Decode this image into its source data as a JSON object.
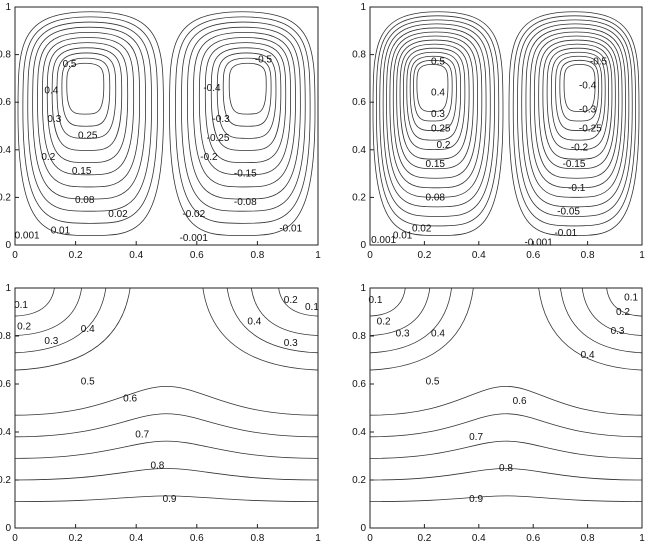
{
  "chart_data": [
    {
      "type": "contour",
      "panel": "top-left",
      "xlim": [
        0,
        1
      ],
      "ylim": [
        0,
        1
      ],
      "xticks": [
        "0",
        "0.2",
        "0.4",
        "0.6",
        "0.8",
        "1"
      ],
      "yticks": [
        "0",
        "0.2",
        "0.4",
        "0.6",
        "0.8",
        "1"
      ],
      "levels": [
        "0.001",
        "0.01",
        "0.02",
        "0.08",
        "0.15",
        "0.2",
        "0.25",
        "0.3",
        "0.4",
        "0.5"
      ],
      "labels": [
        {
          "text": "0.5",
          "x": 0.18,
          "y": 0.76
        },
        {
          "text": "0.4",
          "x": 0.12,
          "y": 0.65
        },
        {
          "text": "0.3",
          "x": 0.13,
          "y": 0.53
        },
        {
          "text": "0.25",
          "x": 0.24,
          "y": 0.46
        },
        {
          "text": "0.2",
          "x": 0.11,
          "y": 0.37
        },
        {
          "text": "0.15",
          "x": 0.22,
          "y": 0.31
        },
        {
          "text": "0.08",
          "x": 0.23,
          "y": 0.19
        },
        {
          "text": "0.02",
          "x": 0.34,
          "y": 0.13
        },
        {
          "text": "0.01",
          "x": 0.15,
          "y": 0.06
        },
        {
          "text": "0.001",
          "x": 0.04,
          "y": 0.04
        },
        {
          "text": "-0.5",
          "x": 0.82,
          "y": 0.78
        },
        {
          "text": "-0.4",
          "x": 0.65,
          "y": 0.66
        },
        {
          "text": "-0.3",
          "x": 0.68,
          "y": 0.53
        },
        {
          "text": "-0.25",
          "x": 0.67,
          "y": 0.45
        },
        {
          "text": "-0.2",
          "x": 0.64,
          "y": 0.37
        },
        {
          "text": "-0.15",
          "x": 0.76,
          "y": 0.3
        },
        {
          "text": "-0.08",
          "x": 0.76,
          "y": 0.18
        },
        {
          "text": "-0.02",
          "x": 0.59,
          "y": 0.13
        },
        {
          "text": "-0.01",
          "x": 0.91,
          "y": 0.07
        },
        {
          "text": "-0.001",
          "x": 0.59,
          "y": 0.03
        }
      ]
    },
    {
      "type": "contour",
      "panel": "top-right",
      "xlim": [
        0,
        1
      ],
      "ylim": [
        0,
        1
      ],
      "xticks": [
        "0",
        "0.2",
        "0.4",
        "0.6",
        "0.8",
        "1"
      ],
      "yticks": [
        "0",
        "0.2",
        "0.4",
        "0.6",
        "0.8",
        "1"
      ],
      "levels": [
        "0.001",
        "0.01",
        "0.02",
        "0.05",
        "0.08",
        "0.1",
        "0.15",
        "0.2",
        "0.25",
        "0.3",
        "0.4",
        "0.5"
      ],
      "labels": [
        {
          "text": "0.5",
          "x": 0.25,
          "y": 0.77
        },
        {
          "text": "0.4",
          "x": 0.25,
          "y": 0.64
        },
        {
          "text": "0.3",
          "x": 0.25,
          "y": 0.55
        },
        {
          "text": "0.25",
          "x": 0.26,
          "y": 0.49
        },
        {
          "text": "0.2",
          "x": 0.27,
          "y": 0.42
        },
        {
          "text": "0.15",
          "x": 0.24,
          "y": 0.34
        },
        {
          "text": "0.08",
          "x": 0.24,
          "y": 0.2
        },
        {
          "text": "0.02",
          "x": 0.19,
          "y": 0.07
        },
        {
          "text": "0.01",
          "x": 0.12,
          "y": 0.04
        },
        {
          "text": "0.001",
          "x": 0.05,
          "y": 0.02
        },
        {
          "text": "-0.5",
          "x": 0.84,
          "y": 0.77
        },
        {
          "text": "-0.4",
          "x": 0.8,
          "y": 0.67
        },
        {
          "text": "-0.3",
          "x": 0.8,
          "y": 0.57
        },
        {
          "text": "-0.25",
          "x": 0.81,
          "y": 0.49
        },
        {
          "text": "-0.2",
          "x": 0.77,
          "y": 0.41
        },
        {
          "text": "-0.15",
          "x": 0.75,
          "y": 0.34
        },
        {
          "text": "-0.1",
          "x": 0.76,
          "y": 0.24
        },
        {
          "text": "-0.05",
          "x": 0.73,
          "y": 0.14
        },
        {
          "text": "-0.01",
          "x": 0.72,
          "y": 0.05
        },
        {
          "text": "-0.001",
          "x": 0.62,
          "y": 0.01
        }
      ]
    },
    {
      "type": "contour",
      "panel": "bottom-left",
      "xlim": [
        0,
        1
      ],
      "ylim": [
        0,
        1
      ],
      "xticks": [
        "0",
        "0.2",
        "0.4",
        "0.6",
        "0.8",
        "1"
      ],
      "yticks": [
        "0",
        "0.2",
        "0.4",
        "0.6",
        "0.8",
        "1"
      ],
      "levels": [
        "0.1",
        "0.2",
        "0.3",
        "0.4",
        "0.5",
        "0.6",
        "0.7",
        "0.8",
        "0.9"
      ],
      "labels": [
        {
          "text": "0.1",
          "x": 0.02,
          "y": 0.93
        },
        {
          "text": "0.2",
          "x": 0.03,
          "y": 0.84
        },
        {
          "text": "0.3",
          "x": 0.12,
          "y": 0.78
        },
        {
          "text": "0.4",
          "x": 0.24,
          "y": 0.83
        },
        {
          "text": "0.5",
          "x": 0.24,
          "y": 0.61
        },
        {
          "text": "0.6",
          "x": 0.38,
          "y": 0.54
        },
        {
          "text": "0.7",
          "x": 0.42,
          "y": 0.39
        },
        {
          "text": "0.8",
          "x": 0.47,
          "y": 0.26
        },
        {
          "text": "0.9",
          "x": 0.51,
          "y": 0.12
        },
        {
          "text": "0.4",
          "x": 0.79,
          "y": 0.86
        },
        {
          "text": "0.3",
          "x": 0.91,
          "y": 0.77
        },
        {
          "text": "0.2",
          "x": 0.91,
          "y": 0.95
        },
        {
          "text": "0.1",
          "x": 0.98,
          "y": 0.92
        }
      ]
    },
    {
      "type": "contour",
      "panel": "bottom-right",
      "xlim": [
        0,
        1
      ],
      "ylim": [
        0,
        1
      ],
      "xticks": [
        "0",
        "0.2",
        "0.4",
        "0.6",
        "0.8",
        "1"
      ],
      "yticks": [
        "0",
        "0.2",
        "0.4",
        "0.6",
        "0.8",
        "1"
      ],
      "levels": [
        "0.1",
        "0.2",
        "0.3",
        "0.4",
        "0.5",
        "0.6",
        "0.7",
        "0.8",
        "0.9"
      ],
      "labels": [
        {
          "text": "0.1",
          "x": 0.02,
          "y": 0.95
        },
        {
          "text": "0.2",
          "x": 0.05,
          "y": 0.86
        },
        {
          "text": "0.3",
          "x": 0.12,
          "y": 0.81
        },
        {
          "text": "0.4",
          "x": 0.25,
          "y": 0.81
        },
        {
          "text": "0.5",
          "x": 0.23,
          "y": 0.61
        },
        {
          "text": "0.6",
          "x": 0.55,
          "y": 0.53
        },
        {
          "text": "0.7",
          "x": 0.39,
          "y": 0.38
        },
        {
          "text": "0.8",
          "x": 0.5,
          "y": 0.25
        },
        {
          "text": "0.9",
          "x": 0.39,
          "y": 0.12
        },
        {
          "text": "0.4",
          "x": 0.8,
          "y": 0.72
        },
        {
          "text": "0.3",
          "x": 0.91,
          "y": 0.82
        },
        {
          "text": "0.2",
          "x": 0.93,
          "y": 0.9
        },
        {
          "text": "0.1",
          "x": 0.96,
          "y": 0.96
        }
      ]
    }
  ]
}
